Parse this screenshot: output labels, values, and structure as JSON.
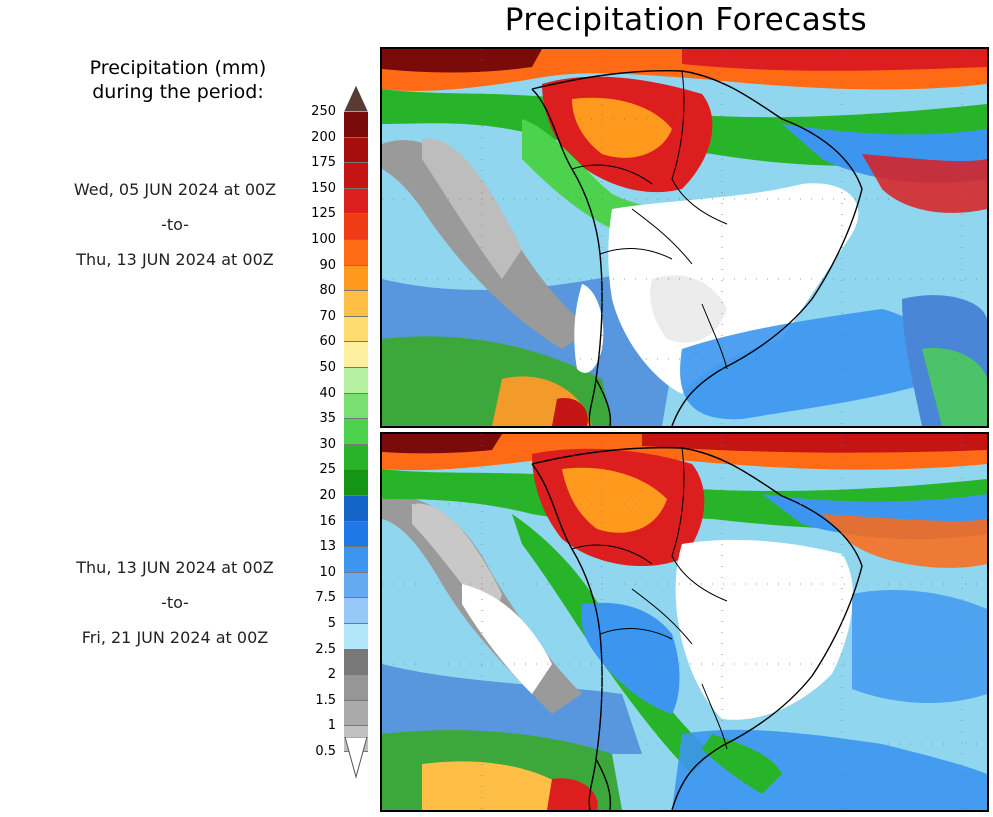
{
  "header": {
    "title": "Precipitation Forecasts"
  },
  "legend": {
    "title_line1": "Precipitation (mm)",
    "title_line2": "during the period:",
    "levels": [
      "250",
      "200",
      "175",
      "150",
      "125",
      "100",
      "90",
      "80",
      "70",
      "60",
      "50",
      "40",
      "35",
      "30",
      "25",
      "20",
      "16",
      "13",
      "10",
      "7.5",
      "5",
      "2.5",
      "2",
      "1.5",
      "1",
      "0.5"
    ],
    "colors": [
      "#7b0a0a",
      "#a60e0e",
      "#c41414",
      "#dc1e1e",
      "#f03c14",
      "#ff6a14",
      "#ff9a1e",
      "#ffbe46",
      "#ffdc70",
      "#fff0a0",
      "#b4f0a0",
      "#78e070",
      "#4cd24c",
      "#28b428",
      "#149614",
      "#1464c8",
      "#1e78e6",
      "#3c96f0",
      "#64aaf0",
      "#96c8f8",
      "#b4e6fa",
      "#787878",
      "#969696",
      "#aaaaaa",
      "#c0c0c0"
    ],
    "top_cap_color": "#5a3a32"
  },
  "periods": [
    {
      "start": "Wed, 05 JUN 2024 at 00Z",
      "sep": "-to-",
      "end": "Thu, 13 JUN 2024 at 00Z"
    },
    {
      "start": "Thu, 13 JUN 2024 at 00Z",
      "sep": "-to-",
      "end": "Fri, 21 JUN 2024 at 00Z"
    }
  ]
}
